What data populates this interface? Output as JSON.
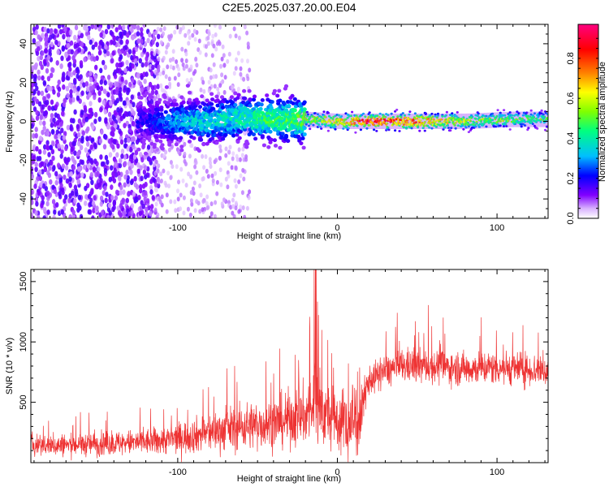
{
  "title": "C2E5.2025.037.20.00.E04",
  "chart_data": [
    {
      "type": "heatmap",
      "xlabel": "Height of straight line (km)",
      "ylabel": "Frequency (Hz)",
      "xlim": [
        -192,
        132
      ],
      "ylim": [
        -50,
        50
      ],
      "xticks": [
        -100,
        0,
        100
      ],
      "xtick_labels": [
        "-100",
        "0",
        "100"
      ],
      "yticks": [
        -40,
        -20,
        0,
        20,
        40
      ],
      "ytick_labels": [
        "-40",
        "-20",
        "0",
        "20",
        "40"
      ],
      "colorbar": {
        "label": "Normalized spectral amplitude",
        "range": [
          0,
          0.97
        ],
        "ticks": [
          0.0,
          0.2,
          0.4,
          0.6,
          0.8
        ],
        "tick_labels": [
          "0.0",
          "0.2",
          "0.4",
          "0.6",
          "0.8"
        ],
        "colormap": [
          "#ffffff",
          "#d9b3ff",
          "#8000ff",
          "#0000ff",
          "#00bfff",
          "#00ff80",
          "#80ff00",
          "#ffff00",
          "#ff8000",
          "#ff0000",
          "#ff0080"
        ]
      },
      "ridge": {
        "x": [
          -120,
          -100,
          -80,
          -60,
          -40,
          -20,
          0,
          20,
          50,
          80,
          110,
          132
        ],
        "center_freq": [
          0,
          0,
          0,
          2,
          1,
          1,
          0,
          0,
          0,
          0,
          1,
          1
        ],
        "peak_amplitude": [
          0.2,
          0.35,
          0.4,
          0.45,
          0.5,
          0.55,
          0.7,
          0.9,
          0.85,
          0.6,
          0.55,
          0.5
        ]
      },
      "grid": false
    },
    {
      "type": "line",
      "xlabel": "Height of straight line (km)",
      "ylabel": "SNR (10 * v/v)",
      "xlim": [
        -192,
        132
      ],
      "ylim": [
        0,
        1600
      ],
      "xticks": [
        -100,
        0,
        100
      ],
      "xtick_labels": [
        "-100",
        "0",
        "100"
      ],
      "yticks": [
        500,
        1000,
        1500
      ],
      "ytick_labels": [
        "500",
        "1000",
        "1500"
      ],
      "series": [
        {
          "color": "#ee3333",
          "x": [
            -192,
            -180,
            -160,
            -140,
            -120,
            -100,
            -80,
            -60,
            -40,
            -30,
            -20,
            -15,
            -10,
            -5,
            0,
            5,
            10,
            15,
            20,
            30,
            40,
            60,
            80,
            100,
            120,
            132
          ],
          "y": [
            150,
            140,
            150,
            160,
            170,
            200,
            250,
            300,
            330,
            360,
            400,
            450,
            420,
            380,
            330,
            380,
            470,
            560,
            680,
            760,
            800,
            800,
            780,
            790,
            770,
            760
          ]
        }
      ],
      "grid": false
    }
  ]
}
